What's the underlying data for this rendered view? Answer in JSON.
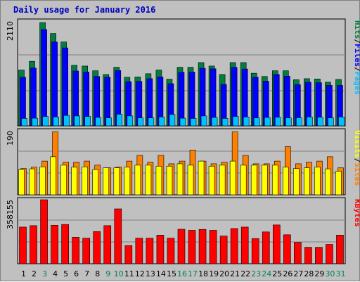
{
  "title": "Daily usage for January 2016",
  "colors": {
    "hits": "#008040",
    "files": "#0000ff",
    "pages": "#00c0ff",
    "visits": "#ff8000",
    "sites": "#ffff00",
    "kbytes": "#ff0000",
    "weekday": "#000000",
    "weekend": "#00805c",
    "background": "#c0c0c0"
  },
  "chart_data": [
    {
      "type": "bar",
      "ylabel_max": "2110",
      "ylim": [
        0,
        2110
      ],
      "side_label": [
        "Pages",
        "Files",
        "Hits"
      ],
      "x": [
        "1",
        "2",
        "3",
        "4",
        "5",
        "6",
        "7",
        "8",
        "9",
        "10",
        "11",
        "12",
        "13",
        "14",
        "15",
        "16",
        "17",
        "18",
        "19",
        "20",
        "21",
        "22",
        "23",
        "24",
        "25",
        "26",
        "27",
        "28",
        "29",
        "30",
        "31"
      ],
      "series": [
        {
          "name": "Hits",
          "values": [
            1125,
            1300,
            2080,
            1860,
            1690,
            1220,
            1205,
            1110,
            1035,
            1180,
            980,
            985,
            1050,
            1125,
            940,
            1180,
            1180,
            1275,
            1205,
            1035,
            1275,
            1275,
            1060,
            995,
            1110,
            1110,
            930,
            950,
            945,
            880,
            935
          ]
        },
        {
          "name": "Files",
          "values": [
            980,
            1165,
            1940,
            1690,
            1570,
            1105,
            1085,
            995,
            980,
            1115,
            890,
            895,
            950,
            985,
            850,
            1080,
            1085,
            1160,
            1150,
            835,
            1180,
            1145,
            980,
            900,
            1035,
            1000,
            830,
            880,
            870,
            815,
            815
          ]
        },
        {
          "name": "Pages",
          "values": [
            150,
            155,
            190,
            180,
            210,
            200,
            190,
            170,
            160,
            235,
            200,
            160,
            160,
            180,
            230,
            155,
            150,
            200,
            170,
            150,
            190,
            180,
            160,
            170,
            175,
            160,
            165,
            180,
            175,
            160,
            180
          ]
        }
      ]
    },
    {
      "type": "bar",
      "ylabel_max": "190",
      "ylim": [
        0,
        190
      ],
      "side_label": [
        "Sites",
        "Visits"
      ],
      "x": [
        "1",
        "2",
        "3",
        "4",
        "5",
        "6",
        "7",
        "8",
        "9",
        "10",
        "11",
        "12",
        "13",
        "14",
        "15",
        "16",
        "17",
        "18",
        "19",
        "20",
        "21",
        "22",
        "23",
        "24",
        "25",
        "26",
        "27",
        "28",
        "29",
        "30",
        "31"
      ],
      "series": [
        {
          "name": "Visits",
          "values": [
            78,
            82,
            100,
            187,
            97,
            97,
            100,
            88,
            80,
            82,
            100,
            117,
            97,
            117,
            92,
            100,
            133,
            100,
            92,
            97,
            187,
            117,
            92,
            92,
            100,
            143,
            92,
            97,
            100,
            113,
            80
          ]
        },
        {
          "name": "Sites",
          "values": [
            75,
            77,
            83,
            113,
            88,
            82,
            83,
            75,
            80,
            80,
            82,
            88,
            88,
            85,
            85,
            92,
            88,
            100,
            85,
            88,
            100,
            88,
            88,
            88,
            88,
            82,
            78,
            80,
            82,
            77,
            70
          ]
        }
      ]
    },
    {
      "type": "bar",
      "ylabel_max": "358155",
      "ylim": [
        0,
        358155
      ],
      "side_label": [
        "KBytes"
      ],
      "x": [
        "1",
        "2",
        "3",
        "4",
        "5",
        "6",
        "7",
        "8",
        "9",
        "10",
        "11",
        "12",
        "13",
        "14",
        "15",
        "16",
        "17",
        "18",
        "19",
        "20",
        "21",
        "22",
        "23",
        "24",
        "25",
        "26",
        "27",
        "28",
        "29",
        "30",
        "31"
      ],
      "series": [
        {
          "name": "KBytes",
          "values": [
            205,
            213,
            358,
            215,
            220,
            148,
            143,
            180,
            213,
            307,
            102,
            143,
            143,
            160,
            143,
            193,
            187,
            192,
            187,
            155,
            197,
            205,
            141,
            178,
            217,
            162,
            119,
            92,
            92,
            108,
            160
          ]
        }
      ]
    }
  ]
}
